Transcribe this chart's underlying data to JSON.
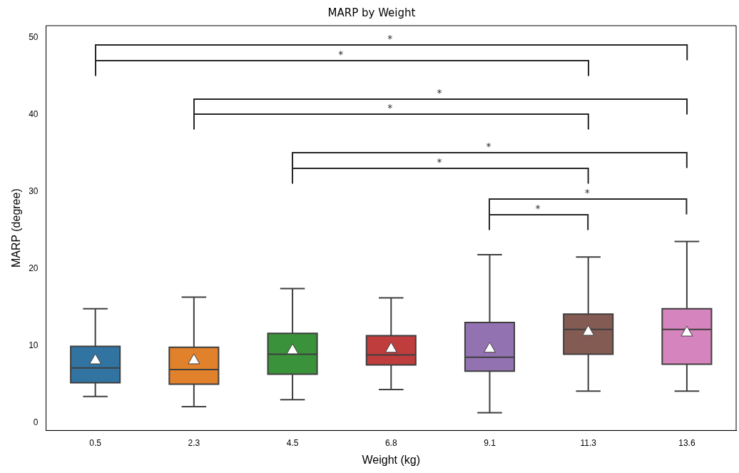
{
  "chart_data": {
    "type": "box",
    "title": "MARP by Weight",
    "xlabel": "Weight (kg)",
    "ylabel": "MARP (degree)",
    "categories": [
      "0.5",
      "2.3",
      "4.5",
      "6.8",
      "9.1",
      "11.3",
      "13.6"
    ],
    "colors": [
      "#3274a1",
      "#e1812c",
      "#3a923a",
      "#c03d3e",
      "#9372b2",
      "#845b53",
      "#d684bd"
    ],
    "boxes": [
      {
        "low": 3.4,
        "q1": 5.2,
        "median": 7.1,
        "q3": 9.9,
        "high": 14.8,
        "mean": 8.2
      },
      {
        "low": 2.1,
        "q1": 5.0,
        "median": 6.9,
        "q3": 9.8,
        "high": 16.3,
        "mean": 8.2
      },
      {
        "low": 3.0,
        "q1": 6.3,
        "median": 8.9,
        "q3": 11.6,
        "high": 17.4,
        "mean": 9.5
      },
      {
        "low": 4.3,
        "q1": 7.5,
        "median": 8.8,
        "q3": 11.3,
        "high": 16.2,
        "mean": 9.7
      },
      {
        "low": 1.3,
        "q1": 6.7,
        "median": 8.5,
        "q3": 13.0,
        "high": 21.8,
        "mean": 9.7
      },
      {
        "low": 4.1,
        "q1": 8.9,
        "median": 12.1,
        "q3": 14.1,
        "high": 21.5,
        "mean": 11.9
      },
      {
        "low": 4.1,
        "q1": 7.6,
        "median": 12.1,
        "q3": 14.8,
        "high": 23.5,
        "mean": 11.8
      }
    ],
    "ylim": [
      -1,
      51.5
    ],
    "yticks": [
      0,
      10,
      20,
      30,
      40,
      50
    ],
    "grid": false,
    "legend": false,
    "annotations": [
      "*",
      "*",
      "*",
      "*",
      "*",
      "*",
      "*",
      "*"
    ]
  }
}
